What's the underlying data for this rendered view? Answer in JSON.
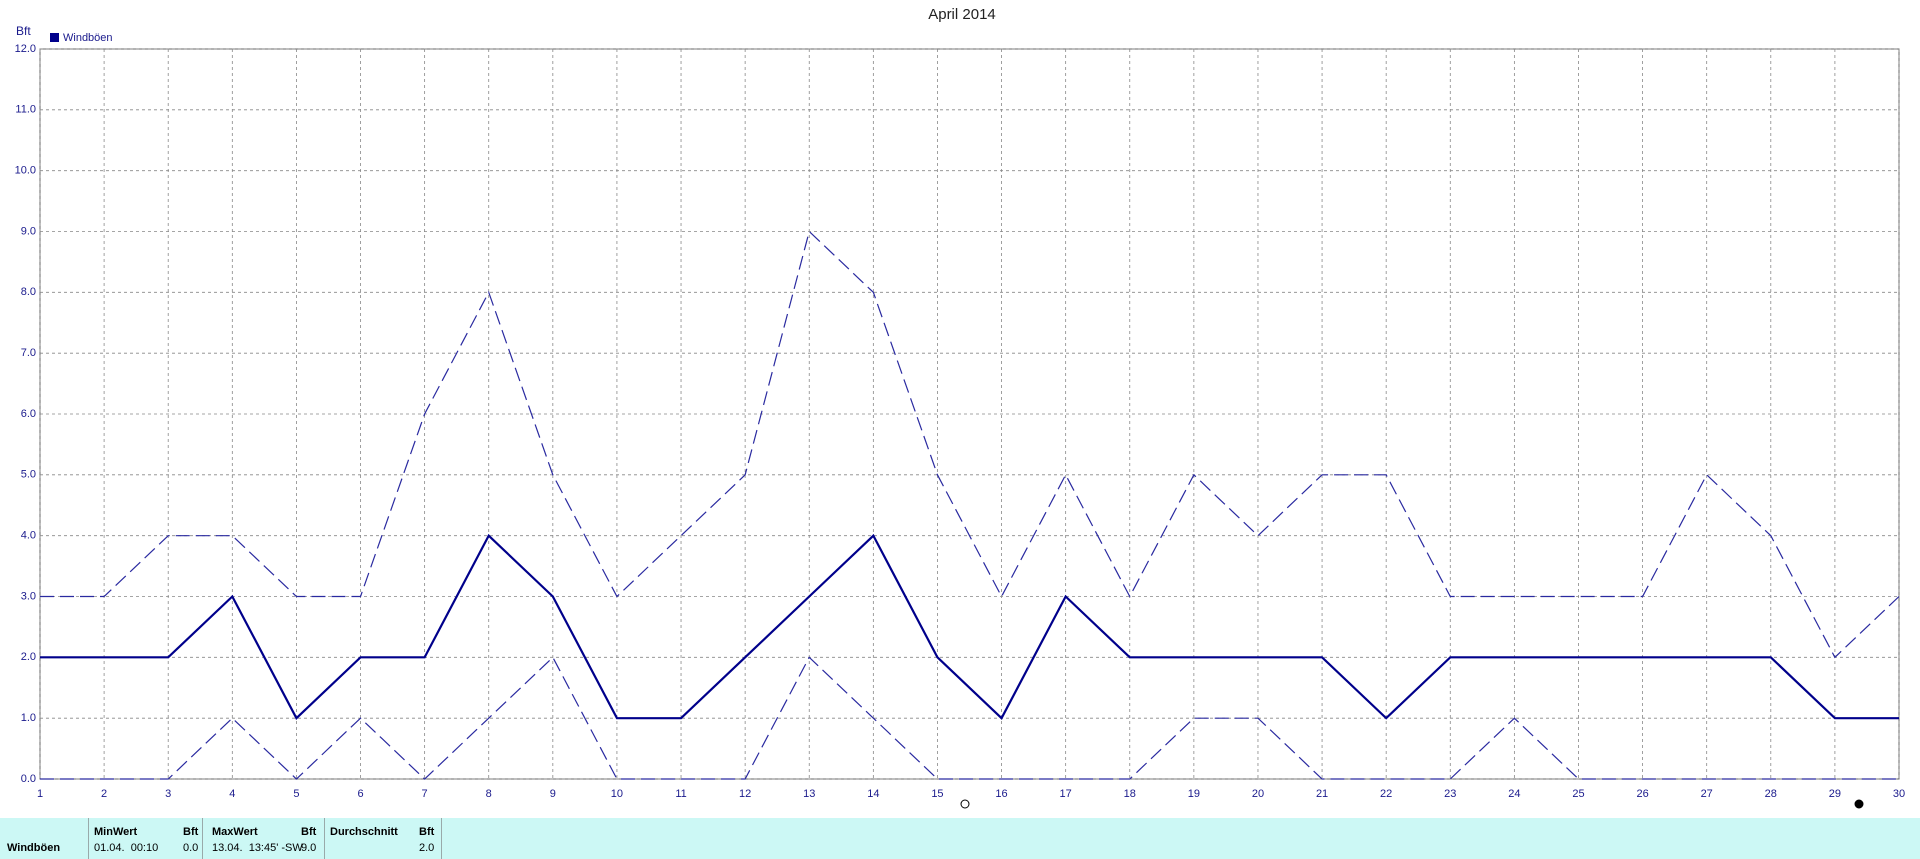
{
  "chart_data": {
    "type": "line",
    "title": "April 2014",
    "y_label": "Bft",
    "x": [
      1,
      2,
      3,
      4,
      5,
      6,
      7,
      8,
      9,
      10,
      11,
      12,
      13,
      14,
      15,
      16,
      17,
      18,
      19,
      20,
      21,
      22,
      23,
      24,
      25,
      26,
      27,
      28,
      29,
      30
    ],
    "series": [
      {
        "name": "Windböen",
        "color": "#00008b",
        "style": "solid",
        "values": [
          2,
          2,
          2,
          3,
          1,
          2,
          2,
          4,
          3,
          1,
          1,
          2,
          3,
          4,
          2,
          1,
          3,
          2,
          2,
          2,
          2,
          1,
          2,
          2,
          2,
          2,
          2,
          2,
          1,
          1
        ]
      },
      {
        "color": "#2a2aa0",
        "style": "dashed",
        "values": [
          3,
          3,
          4,
          4,
          3,
          3,
          6,
          8,
          5,
          3,
          4,
          5,
          9,
          8,
          5,
          3,
          5,
          3,
          5,
          4,
          5,
          5,
          3,
          3,
          3,
          3,
          5,
          4,
          2,
          3
        ]
      },
      {
        "color": "#2a2aa0",
        "style": "dashed",
        "values": [
          0,
          0,
          0,
          1,
          0,
          1,
          0,
          1,
          2,
          0,
          0,
          0,
          2,
          1,
          0,
          0,
          0,
          0,
          1,
          1,
          0,
          0,
          0,
          1,
          0,
          0,
          0,
          0,
          0,
          0
        ]
      }
    ],
    "xlim": [
      1,
      30
    ],
    "xticks": [
      1,
      2,
      3,
      4,
      5,
      6,
      7,
      8,
      9,
      10,
      11,
      12,
      13,
      14,
      15,
      16,
      17,
      18,
      19,
      20,
      21,
      22,
      23,
      24,
      25,
      26,
      27,
      28,
      29,
      30
    ],
    "ylim": [
      0,
      12
    ],
    "yticks": [
      {
        "value": 0,
        "label": "0.0"
      },
      {
        "value": 1,
        "label": "1.0"
      },
      {
        "value": 2,
        "label": "2.0"
      },
      {
        "value": 3,
        "label": "3.0"
      },
      {
        "value": 4,
        "label": "4.0"
      },
      {
        "value": 5,
        "label": "5.0"
      },
      {
        "value": 6,
        "label": "6.0"
      },
      {
        "value": 7,
        "label": "7.0"
      },
      {
        "value": 8,
        "label": "8.0"
      },
      {
        "value": 9,
        "label": "9.0"
      },
      {
        "value": 10,
        "label": "10.0"
      },
      {
        "value": 11,
        "label": "11.0"
      },
      {
        "value": 12,
        "label": "12.0"
      }
    ],
    "grid": true,
    "legend": "top-left"
  },
  "footer": {
    "row_label": "Windböen",
    "columns": [
      {
        "header": "MinWert",
        "unit": "Bft",
        "when": "01.04.  00:10",
        "value": "0.0"
      },
      {
        "header": "MaxWert",
        "unit": "Bft",
        "when": "13.04.  13:45' -SW",
        "value": "9.0"
      },
      {
        "header": "Durchschnitt",
        "unit": "Bft",
        "value": "2.0"
      }
    ]
  }
}
